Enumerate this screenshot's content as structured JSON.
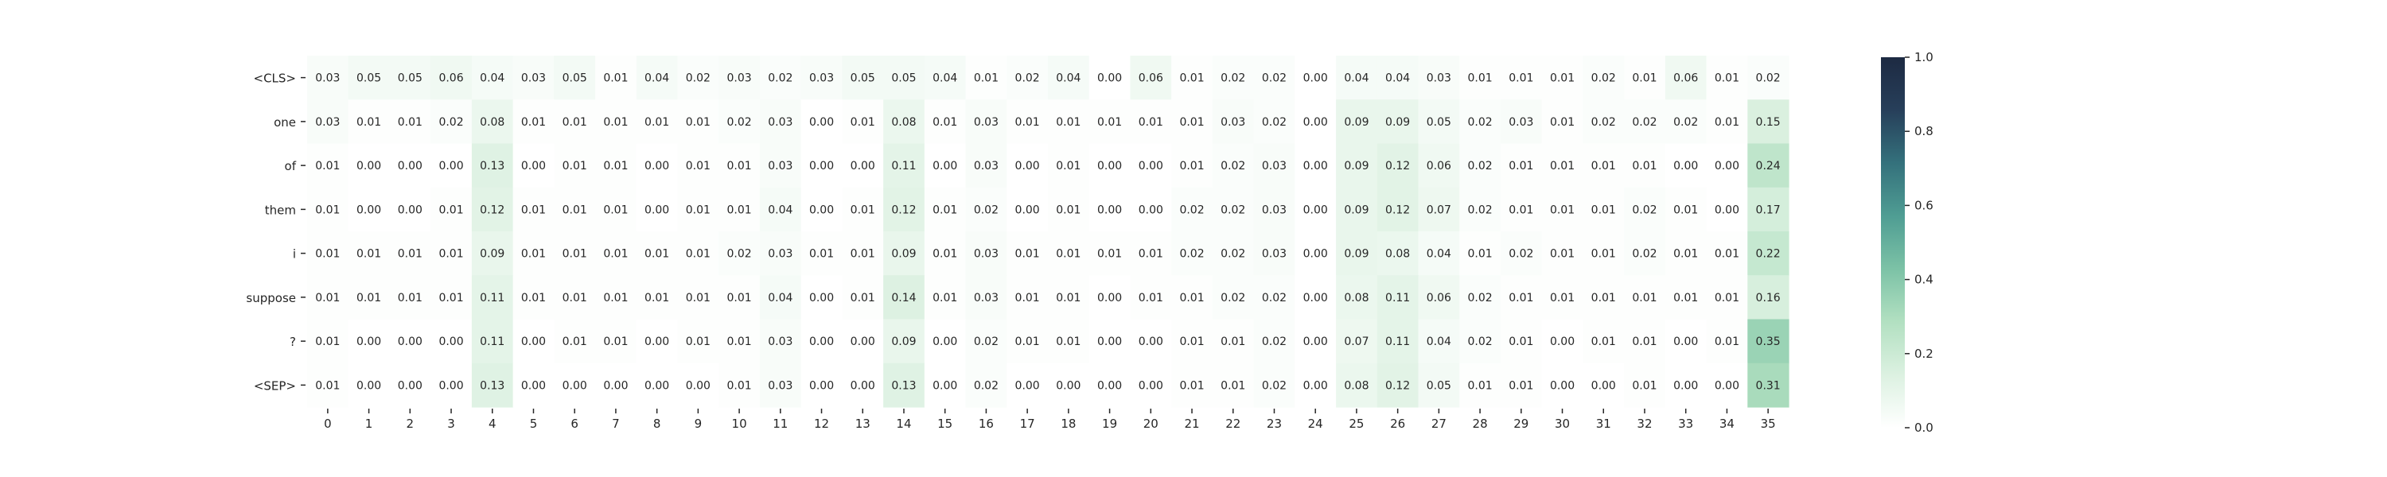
{
  "chart_data": {
    "type": "heatmap",
    "title": "",
    "xlabel": "",
    "ylabel": "",
    "rows": [
      "<CLS>",
      "one",
      "of",
      "them",
      "i",
      "suppose",
      "?",
      "<SEP>"
    ],
    "columns": [
      "0",
      "1",
      "2",
      "3",
      "4",
      "5",
      "6",
      "7",
      "8",
      "9",
      "10",
      "11",
      "12",
      "13",
      "14",
      "15",
      "16",
      "17",
      "18",
      "19",
      "20",
      "21",
      "22",
      "23",
      "24",
      "25",
      "26",
      "27",
      "28",
      "29",
      "30",
      "31",
      "32",
      "33",
      "34",
      "35"
    ],
    "values": [
      [
        0.03,
        0.05,
        0.05,
        0.06,
        0.04,
        0.03,
        0.05,
        0.01,
        0.04,
        0.02,
        0.03,
        0.02,
        0.03,
        0.05,
        0.05,
        0.04,
        0.01,
        0.02,
        0.04,
        0.0,
        0.06,
        0.01,
        0.02,
        0.02,
        0.0,
        0.04,
        0.04,
        0.03,
        0.01,
        0.01,
        0.01,
        0.02,
        0.01,
        0.06,
        0.01,
        0.02
      ],
      [
        0.03,
        0.01,
        0.01,
        0.02,
        0.08,
        0.01,
        0.01,
        0.01,
        0.01,
        0.01,
        0.02,
        0.03,
        0.0,
        0.01,
        0.08,
        0.01,
        0.03,
        0.01,
        0.01,
        0.01,
        0.01,
        0.01,
        0.03,
        0.02,
        0.0,
        0.09,
        0.09,
        0.05,
        0.02,
        0.03,
        0.01,
        0.02,
        0.02,
        0.02,
        0.01,
        0.15
      ],
      [
        0.01,
        0.0,
        0.0,
        0.0,
        0.13,
        0.0,
        0.01,
        0.01,
        0.0,
        0.01,
        0.01,
        0.03,
        0.0,
        0.0,
        0.11,
        0.0,
        0.03,
        0.0,
        0.01,
        0.0,
        0.0,
        0.01,
        0.02,
        0.03,
        0.0,
        0.09,
        0.12,
        0.06,
        0.02,
        0.01,
        0.01,
        0.01,
        0.01,
        0.0,
        0.0,
        0.24
      ],
      [
        0.01,
        0.0,
        0.0,
        0.01,
        0.12,
        0.01,
        0.01,
        0.01,
        0.0,
        0.01,
        0.01,
        0.04,
        0.0,
        0.01,
        0.12,
        0.01,
        0.02,
        0.0,
        0.01,
        0.0,
        0.0,
        0.02,
        0.02,
        0.03,
        0.0,
        0.09,
        0.12,
        0.07,
        0.02,
        0.01,
        0.01,
        0.01,
        0.02,
        0.01,
        0.0,
        0.17
      ],
      [
        0.01,
        0.01,
        0.01,
        0.01,
        0.09,
        0.01,
        0.01,
        0.01,
        0.01,
        0.01,
        0.02,
        0.03,
        0.01,
        0.01,
        0.09,
        0.01,
        0.03,
        0.01,
        0.01,
        0.01,
        0.01,
        0.02,
        0.02,
        0.03,
        0.0,
        0.09,
        0.08,
        0.04,
        0.01,
        0.02,
        0.01,
        0.01,
        0.02,
        0.01,
        0.01,
        0.22
      ],
      [
        0.01,
        0.01,
        0.01,
        0.01,
        0.11,
        0.01,
        0.01,
        0.01,
        0.01,
        0.01,
        0.01,
        0.04,
        0.0,
        0.01,
        0.14,
        0.01,
        0.03,
        0.01,
        0.01,
        0.0,
        0.01,
        0.01,
        0.02,
        0.02,
        0.0,
        0.08,
        0.11,
        0.06,
        0.02,
        0.01,
        0.01,
        0.01,
        0.01,
        0.01,
        0.01,
        0.16
      ],
      [
        0.01,
        0.0,
        0.0,
        0.0,
        0.11,
        0.0,
        0.01,
        0.01,
        0.0,
        0.01,
        0.01,
        0.03,
        0.0,
        0.0,
        0.09,
        0.0,
        0.02,
        0.01,
        0.01,
        0.0,
        0.0,
        0.01,
        0.01,
        0.02,
        0.0,
        0.07,
        0.11,
        0.04,
        0.02,
        0.01,
        0.0,
        0.01,
        0.01,
        0.0,
        0.01,
        0.35
      ],
      [
        0.01,
        0.0,
        0.0,
        0.0,
        0.13,
        0.0,
        0.0,
        0.0,
        0.0,
        0.0,
        0.01,
        0.03,
        0.0,
        0.0,
        0.13,
        0.0,
        0.02,
        0.0,
        0.0,
        0.0,
        0.0,
        0.01,
        0.01,
        0.02,
        0.0,
        0.08,
        0.12,
        0.05,
        0.01,
        0.01,
        0.0,
        0.0,
        0.01,
        0.0,
        0.0,
        0.31
      ]
    ],
    "colorbar": {
      "range": [
        0.0,
        1.0
      ],
      "ticks": [
        "0.0",
        "0.2",
        "0.4",
        "0.6",
        "0.8",
        "1.0"
      ]
    },
    "colormap": [
      "#ffffff",
      "#dcf1e1",
      "#b2e0c1",
      "#7cc2a6",
      "#4f9d93",
      "#34717c",
      "#273f5a",
      "#1d2a42"
    ],
    "grid": false,
    "legend": "none"
  }
}
